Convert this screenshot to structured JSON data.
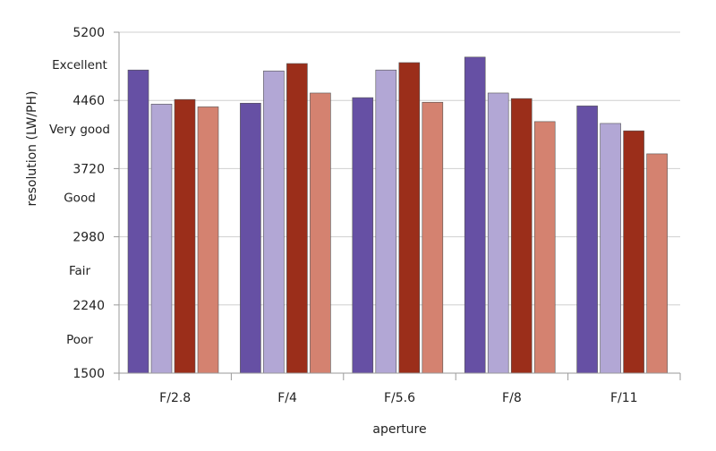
{
  "chart_data": {
    "type": "bar",
    "title": "",
    "xlabel": "aperture",
    "ylabel": "resolution (LW/PH)",
    "categories": [
      "F/2.8",
      "F/4",
      "F/5.6",
      "F/8",
      "F/11"
    ],
    "ylim": [
      1500,
      5200
    ],
    "yticks": [
      1500,
      2240,
      2980,
      3720,
      4460,
      5200
    ],
    "band_labels": [
      {
        "text": "Poor",
        "value": 1870
      },
      {
        "text": "Fair",
        "value": 2615
      },
      {
        "text": "Good",
        "value": 3410
      },
      {
        "text": "Very good",
        "value": 4150
      },
      {
        "text": "Excellent",
        "value": 4850
      }
    ],
    "series": [
      {
        "values": [
          4790,
          4430,
          4490,
          4930,
          4400
        ],
        "color": "#6650a4"
      },
      {
        "values": [
          4420,
          4780,
          4790,
          4540,
          4210
        ],
        "color": "#b2a7d5"
      },
      {
        "values": [
          4470,
          4860,
          4870,
          4480,
          4130
        ],
        "color": "#9b2e1a"
      },
      {
        "values": [
          4390,
          4540,
          4440,
          4230,
          3880
        ],
        "color": "#d48270"
      }
    ],
    "grid": true,
    "legend": "none"
  }
}
